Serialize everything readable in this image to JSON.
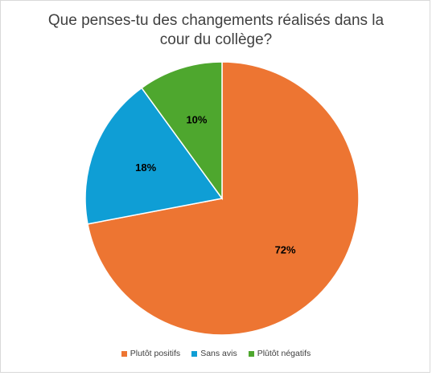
{
  "chart_data": {
    "type": "pie",
    "title": "Que penses-tu des changements réalisés dans la cour du collège?",
    "slices": [
      {
        "label": "Plutôt positifs",
        "value": 72,
        "display": "72%",
        "color": "#ED7532"
      },
      {
        "label": "Sans avis",
        "value": 18,
        "display": "18%",
        "color": "#0F9ED5"
      },
      {
        "label": "Plûtôt négatifs",
        "value": 10,
        "display": "10%",
        "color": "#4EA72E"
      }
    ],
    "start": "12 o'clock",
    "direction": "clockwise",
    "legend_position": "bottom"
  }
}
